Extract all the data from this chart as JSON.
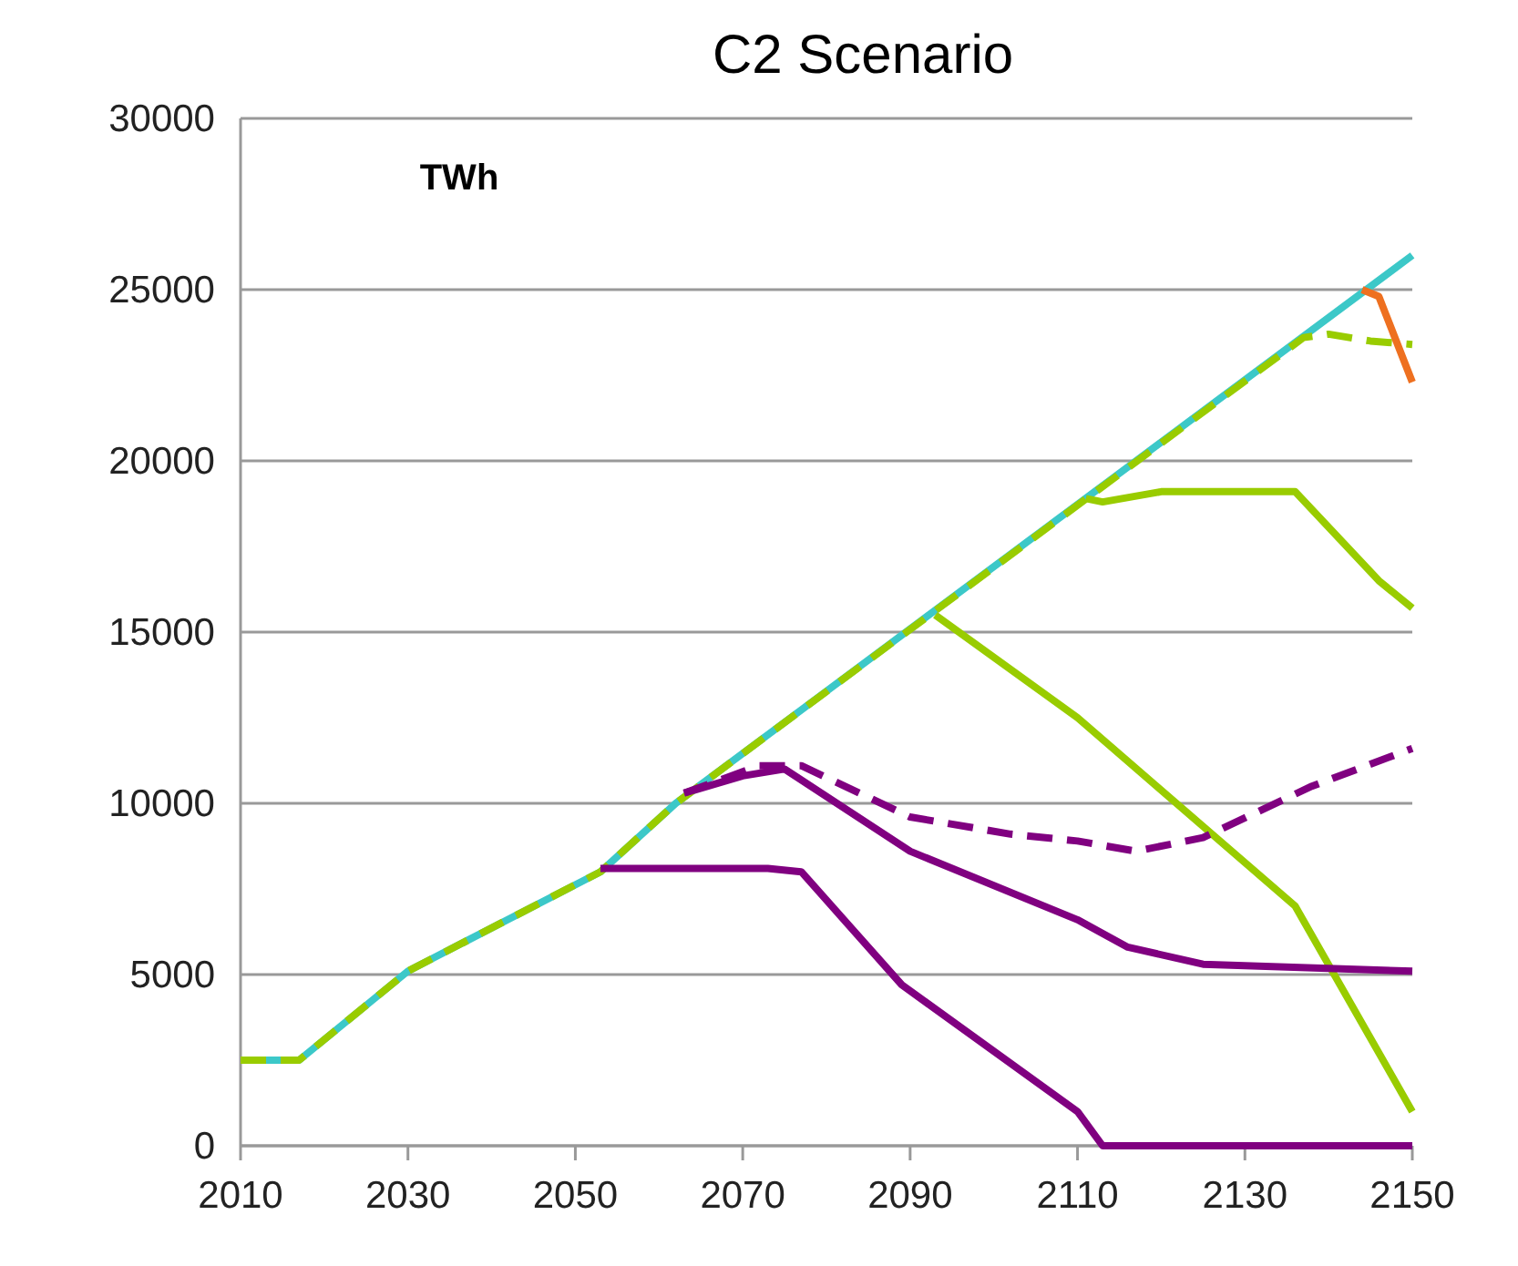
{
  "chart_data": {
    "type": "line",
    "title": "C2 Scenario",
    "ylabel": "TWh",
    "xlim": [
      2010,
      2150
    ],
    "xticks": [
      2010,
      2030,
      2050,
      2070,
      2090,
      2110,
      2130,
      2150
    ],
    "ylim": [
      0,
      30000
    ],
    "yticks": [
      0,
      5000,
      10000,
      15000,
      20000,
      25000,
      30000
    ],
    "grid": "y",
    "marker": "none",
    "series": [
      {
        "color": "#3cc8c8",
        "line_style": "solid",
        "x": [
          2010,
          2017,
          2030,
          2053,
          2062,
          2150
        ],
        "values": [
          2500,
          2500,
          5100,
          8000,
          10000,
          26000
        ]
      },
      {
        "color": "#99cc00",
        "line_style": "dashed",
        "x": [
          2010,
          2017,
          2030,
          2053,
          2062,
          2137,
          2140,
          2145,
          2150
        ],
        "values": [
          2500,
          2500,
          5100,
          8000,
          10000,
          23600,
          23700,
          23500,
          23400
        ]
      },
      {
        "color": "#ee7020",
        "line_style": "solid",
        "x": [
          2144,
          2146,
          2150
        ],
        "values": [
          25000,
          24800,
          22300
        ]
      },
      {
        "color": "#99cc00",
        "line_style": "solid",
        "x": [
          2111,
          2113,
          2120,
          2136,
          2146,
          2150
        ],
        "values": [
          18900,
          18800,
          19100,
          19100,
          16500,
          15700
        ]
      },
      {
        "color": "#99cc00",
        "line_style": "solid",
        "x": [
          2093,
          2110,
          2136,
          2150
        ],
        "values": [
          15500,
          12500,
          7000,
          1000
        ]
      },
      {
        "color": "#800080",
        "line_style": "solid",
        "x": [
          2063,
          2070,
          2075,
          2090,
          2110,
          2116,
          2125,
          2150
        ],
        "values": [
          10300,
          10800,
          11000,
          8600,
          6600,
          5800,
          5300,
          5100
        ]
      },
      {
        "color": "#800080",
        "line_style": "dashed",
        "x": [
          2063,
          2072,
          2077,
          2090,
          2102,
          2110,
          2117,
          2125,
          2138,
          2150
        ],
        "values": [
          10300,
          11100,
          11100,
          9600,
          9100,
          8900,
          8600,
          9000,
          10500,
          11600
        ]
      },
      {
        "color": "#800080",
        "line_style": "solid",
        "x": [
          2053,
          2073,
          2077,
          2089,
          2110,
          2113,
          2150
        ],
        "values": [
          8100,
          8100,
          8000,
          4700,
          1000,
          0,
          0
        ]
      }
    ]
  }
}
